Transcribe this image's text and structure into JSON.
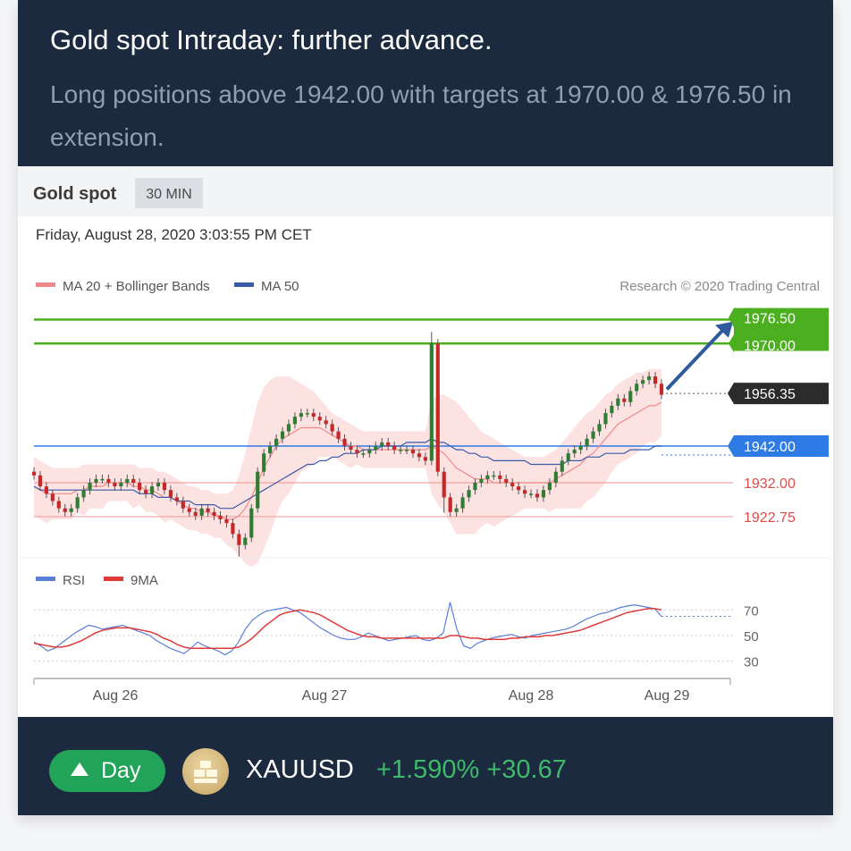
{
  "header": {
    "title": "Gold spot Intraday: further advance.",
    "subtitle": "Long positions above 1942.00 with targets at 1970.00 & 1976.50 in extension."
  },
  "chart_panel": {
    "instrument": "Gold spot",
    "timeframe": "30 MIN",
    "timestamp": "Friday, August 28, 2020 3:03:55 PM CET",
    "credit": "Research © 2020 Trading Central"
  },
  "chart_data": [
    {
      "type": "line",
      "description_series": "candlestick price with MA 20 + Bollinger Bands and MA 50",
      "legend": [
        {
          "name": "MA 20 + Bollinger Bands",
          "color": "#f08a8a"
        },
        {
          "name": "MA 50",
          "color": "#3a5ba8"
        }
      ],
      "legend_position": "top-left",
      "x_ticks": [
        "Aug 26",
        "Aug 27",
        "Aug 28",
        "Aug 29"
      ],
      "ylim": [
        1912,
        1982
      ],
      "levels": [
        {
          "value": 1976.5,
          "label": "1976.50",
          "kind": "target",
          "color": "#4caf1f"
        },
        {
          "value": 1970.0,
          "label": "1970.00",
          "kind": "target",
          "color": "#4caf1f"
        },
        {
          "value": 1956.35,
          "label": "1956.35",
          "kind": "last-price",
          "color": "#2b2b2b"
        },
        {
          "value": 1942.0,
          "label": "1942.00",
          "kind": "pivot",
          "color": "#2f7be6"
        },
        {
          "value": 1932.0,
          "label": "1932.00",
          "kind": "resistance-support",
          "color": "#e24a4a"
        },
        {
          "value": 1922.75,
          "label": "1922.75",
          "kind": "resistance-support",
          "color": "#e24a4a"
        }
      ],
      "candles_close": [
        1934,
        1931,
        1929,
        1927,
        1925,
        1924,
        1925,
        1928,
        1930,
        1932,
        1933,
        1933,
        1932,
        1931,
        1932,
        1933,
        1932,
        1930,
        1929,
        1931,
        1932,
        1930,
        1928,
        1927,
        1925,
        1924,
        1923,
        1925,
        1924,
        1923,
        1922,
        1921,
        1918,
        1915,
        1917,
        1925,
        1935,
        1940,
        1942,
        1944,
        1946,
        1948,
        1950,
        1951,
        1951,
        1950,
        1949,
        1948,
        1946,
        1944,
        1942,
        1941,
        1940,
        1940,
        1941,
        1942,
        1943,
        1942,
        1941,
        1941,
        1941,
        1940,
        1939,
        1938,
        1970,
        1935,
        1928,
        1924,
        1925,
        1928,
        1930,
        1932,
        1933,
        1934,
        1934,
        1933,
        1932,
        1931,
        1930,
        1929,
        1929,
        1928,
        1930,
        1932,
        1935,
        1938,
        1940,
        1941,
        1942,
        1944,
        1946,
        1948,
        1951,
        1953,
        1955,
        1954,
        1957,
        1959,
        1960,
        1961,
        1959,
        1956
      ],
      "ma20": [
        1931,
        1930,
        1929,
        1929,
        1929,
        1929,
        1929,
        1930,
        1930,
        1931,
        1931,
        1931,
        1932,
        1932,
        1932,
        1932,
        1931,
        1931,
        1930,
        1930,
        1929,
        1928,
        1928,
        1927,
        1926,
        1925,
        1925,
        1924,
        1924,
        1923,
        1923,
        1922,
        1922,
        1923,
        1925,
        1928,
        1932,
        1936,
        1939,
        1942,
        1944,
        1945,
        1946,
        1947,
        1947,
        1947,
        1947,
        1946,
        1945,
        1944,
        1943,
        1942,
        1942,
        1941,
        1941,
        1941,
        1941,
        1941,
        1941,
        1941,
        1941,
        1941,
        1941,
        1941,
        1942,
        1941,
        1940,
        1938,
        1936,
        1935,
        1934,
        1933,
        1933,
        1933,
        1932,
        1932,
        1932,
        1932,
        1932,
        1932,
        1932,
        1932,
        1932,
        1932,
        1933,
        1934,
        1935,
        1936,
        1937,
        1939,
        1940,
        1942,
        1944,
        1946,
        1948,
        1949,
        1950,
        1951,
        1952,
        1953,
        1953,
        1954
      ],
      "ma50": [
        1931,
        1930,
        1930,
        1930,
        1930,
        1930,
        1930,
        1930,
        1930,
        1930,
        1930,
        1930,
        1930,
        1930,
        1930,
        1930,
        1930,
        1929,
        1929,
        1929,
        1928,
        1928,
        1928,
        1927,
        1927,
        1927,
        1926,
        1926,
        1926,
        1926,
        1925,
        1925,
        1925,
        1926,
        1927,
        1928,
        1929,
        1930,
        1931,
        1932,
        1933,
        1934,
        1935,
        1936,
        1937,
        1937,
        1938,
        1938,
        1939,
        1939,
        1940,
        1940,
        1940,
        1941,
        1941,
        1941,
        1942,
        1942,
        1942,
        1942,
        1943,
        1943,
        1943,
        1943,
        1944,
        1943,
        1943,
        1942,
        1941,
        1941,
        1940,
        1940,
        1939,
        1939,
        1938,
        1938,
        1938,
        1938,
        1938,
        1938,
        1937,
        1937,
        1937,
        1937,
        1937,
        1937,
        1938,
        1938,
        1938,
        1939,
        1939,
        1939,
        1940,
        1940,
        1940,
        1940,
        1941,
        1941,
        1941,
        1941,
        1942,
        1942
      ],
      "bb_upper": [
        1939,
        1938,
        1937,
        1936,
        1936,
        1936,
        1936,
        1936,
        1937,
        1937,
        1937,
        1937,
        1937,
        1937,
        1937,
        1937,
        1937,
        1936,
        1936,
        1936,
        1935,
        1935,
        1934,
        1933,
        1932,
        1931,
        1931,
        1930,
        1930,
        1929,
        1929,
        1929,
        1930,
        1934,
        1940,
        1947,
        1954,
        1958,
        1960,
        1961,
        1961,
        1961,
        1960,
        1959,
        1958,
        1957,
        1955,
        1953,
        1951,
        1950,
        1949,
        1948,
        1947,
        1946,
        1946,
        1946,
        1946,
        1946,
        1946,
        1946,
        1946,
        1946,
        1946,
        1946,
        1955,
        1956,
        1956,
        1955,
        1954,
        1952,
        1950,
        1948,
        1946,
        1945,
        1944,
        1943,
        1942,
        1941,
        1940,
        1939,
        1939,
        1939,
        1939,
        1940,
        1941,
        1943,
        1945,
        1947,
        1949,
        1951,
        1952,
        1954,
        1956,
        1957,
        1959,
        1960,
        1961,
        1962,
        1962,
        1963,
        1963,
        1963
      ],
      "bb_lower": [
        1923,
        1922,
        1921,
        1922,
        1922,
        1922,
        1922,
        1924,
        1923,
        1925,
        1925,
        1925,
        1927,
        1927,
        1927,
        1927,
        1925,
        1926,
        1924,
        1924,
        1923,
        1921,
        1922,
        1921,
        1920,
        1919,
        1919,
        1918,
        1918,
        1917,
        1917,
        1915,
        1914,
        1912,
        1910,
        1909,
        1910,
        1914,
        1918,
        1923,
        1927,
        1929,
        1932,
        1935,
        1936,
        1937,
        1939,
        1939,
        1939,
        1938,
        1937,
        1936,
        1937,
        1936,
        1936,
        1936,
        1936,
        1936,
        1936,
        1936,
        1936,
        1936,
        1936,
        1936,
        1929,
        1926,
        1924,
        1921,
        1918,
        1918,
        1918,
        1918,
        1920,
        1921,
        1920,
        1921,
        1922,
        1923,
        1924,
        1925,
        1925,
        1925,
        1925,
        1924,
        1925,
        1925,
        1925,
        1925,
        1925,
        1927,
        1928,
        1930,
        1932,
        1935,
        1937,
        1938,
        1939,
        1940,
        1942,
        1943,
        1943,
        1945
      ]
    },
    {
      "type": "line",
      "description_series": "RSI oscillator",
      "legend": [
        {
          "name": "RSI",
          "color": "#5b7fd6"
        },
        {
          "name": "9MA",
          "color": "#e03a3a"
        }
      ],
      "y_ticks": [
        "70",
        "50",
        "30"
      ],
      "ylim": [
        20,
        80
      ],
      "rsi": [
        45,
        42,
        38,
        40,
        44,
        48,
        52,
        55,
        58,
        57,
        55,
        56,
        57,
        58,
        56,
        54,
        52,
        50,
        46,
        43,
        40,
        38,
        36,
        40,
        45,
        42,
        40,
        38,
        35,
        38,
        45,
        55,
        62,
        66,
        69,
        70,
        71,
        72,
        70,
        68,
        64,
        60,
        56,
        53,
        50,
        48,
        47,
        47,
        49,
        52,
        50,
        48,
        46,
        47,
        48,
        49,
        50,
        47,
        46,
        48,
        52,
        76,
        55,
        42,
        40,
        44,
        46,
        48,
        49,
        50,
        51,
        49,
        48,
        50,
        51,
        52,
        53,
        54,
        55,
        57,
        60,
        63,
        65,
        67,
        68,
        70,
        72,
        73,
        74,
        73,
        72,
        71,
        65
      ],
      "rsi_9ma": [
        44,
        43,
        42,
        41,
        41,
        42,
        44,
        46,
        49,
        52,
        54,
        55,
        56,
        56,
        56,
        55,
        54,
        53,
        51,
        48,
        46,
        43,
        41,
        40,
        40,
        40,
        40,
        40,
        40,
        40,
        41,
        44,
        48,
        53,
        58,
        62,
        66,
        68,
        69,
        70,
        69,
        68,
        66,
        63,
        60,
        57,
        54,
        52,
        50,
        49,
        49,
        48,
        48,
        48,
        48,
        48,
        48,
        48,
        48,
        48,
        48,
        50,
        50,
        49,
        48,
        48,
        47,
        47,
        47,
        47,
        48,
        48,
        49,
        49,
        49,
        50,
        50,
        51,
        52,
        53,
        54,
        56,
        58,
        60,
        62,
        64,
        66,
        68,
        69,
        70,
        71,
        71,
        70
      ]
    }
  ],
  "footer": {
    "period_label": "Day",
    "symbol": "XAUUSD",
    "change": "+1.590% +30.67"
  }
}
